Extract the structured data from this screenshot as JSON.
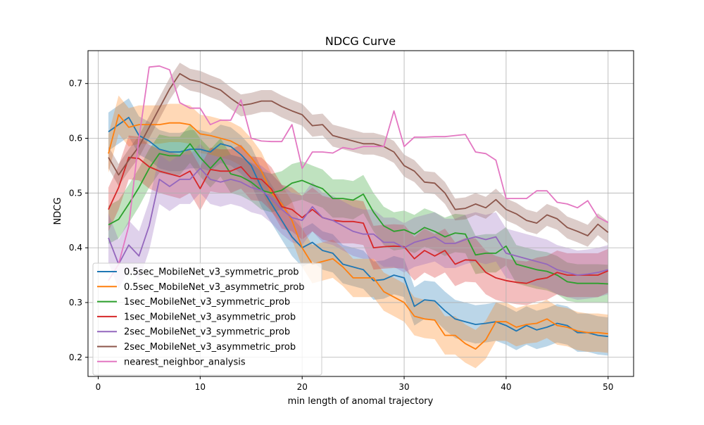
{
  "chart_data": {
    "type": "line",
    "title": "NDCG Curve",
    "xlabel": "min length of anomal trajectory",
    "ylabel": "NDCG",
    "xlim": [
      -1,
      52.5
    ],
    "ylim": [
      0.165,
      0.76
    ],
    "x_ticks": [
      0,
      10,
      20,
      30,
      40,
      50
    ],
    "y_ticks": [
      0.2,
      0.3,
      0.4,
      0.5,
      0.6,
      0.7
    ],
    "grid": true,
    "legend_position": "lower-left",
    "x": [
      1,
      2,
      3,
      4,
      5,
      6,
      7,
      8,
      9,
      10,
      11,
      12,
      13,
      14,
      15,
      16,
      17,
      18,
      19,
      20,
      21,
      22,
      23,
      24,
      25,
      26,
      27,
      28,
      29,
      30,
      31,
      32,
      33,
      34,
      35,
      36,
      37,
      38,
      39,
      40,
      41,
      42,
      43,
      44,
      45,
      46,
      47,
      48,
      49,
      50
    ],
    "series": [
      {
        "name": "0.5sec_MobileNet_v3_symmetric_prob",
        "color": "#1f77b4",
        "band": 0.035,
        "values": [
          0.612,
          0.625,
          0.638,
          0.605,
          0.595,
          0.58,
          0.575,
          0.575,
          0.58,
          0.58,
          0.575,
          0.59,
          0.585,
          0.57,
          0.55,
          0.51,
          0.48,
          0.45,
          0.42,
          0.4,
          0.41,
          0.395,
          0.39,
          0.37,
          0.365,
          0.36,
          0.34,
          0.342,
          0.35,
          0.345,
          0.293,
          0.305,
          0.303,
          0.285,
          0.27,
          0.265,
          0.26,
          0.262,
          0.265,
          0.258,
          0.248,
          0.258,
          0.25,
          0.255,
          0.262,
          0.258,
          0.245,
          0.245,
          0.24,
          0.238
        ]
      },
      {
        "name": "0.5sec_MobileNet_v3_asymmetric_prob",
        "color": "#ff7f0e",
        "band": 0.035,
        "values": [
          0.572,
          0.643,
          0.62,
          0.625,
          0.625,
          0.625,
          0.628,
          0.628,
          0.625,
          0.608,
          0.605,
          0.6,
          0.595,
          0.585,
          0.565,
          0.54,
          0.5,
          0.48,
          0.45,
          0.4,
          0.37,
          0.375,
          0.38,
          0.365,
          0.345,
          0.345,
          0.345,
          0.32,
          0.31,
          0.3,
          0.275,
          0.27,
          0.268,
          0.24,
          0.24,
          0.225,
          0.215,
          0.232,
          0.265,
          0.265,
          0.255,
          0.26,
          0.262,
          0.27,
          0.258,
          0.255,
          0.248,
          0.245,
          0.245,
          0.243
        ]
      },
      {
        "name": "1sec_MobileNet_v3_symmetric_prob",
        "color": "#2ca02c",
        "band": 0.035,
        "values": [
          0.442,
          0.452,
          0.48,
          0.51,
          0.545,
          0.572,
          0.568,
          0.568,
          0.59,
          0.565,
          0.545,
          0.565,
          0.535,
          0.53,
          0.52,
          0.505,
          0.5,
          0.505,
          0.518,
          0.523,
          0.515,
          0.508,
          0.49,
          0.49,
          0.487,
          0.498,
          0.465,
          0.44,
          0.43,
          0.433,
          0.425,
          0.437,
          0.43,
          0.42,
          0.427,
          0.425,
          0.387,
          0.39,
          0.39,
          0.403,
          0.37,
          0.365,
          0.36,
          0.357,
          0.35,
          0.338,
          0.335,
          0.335,
          0.335,
          0.334
        ]
      },
      {
        "name": "1sec_MobileNet_v3_asymmetric_prob",
        "color": "#d62728",
        "band": 0.04,
        "values": [
          0.47,
          0.51,
          0.565,
          0.563,
          0.548,
          0.54,
          0.535,
          0.53,
          0.54,
          0.508,
          0.543,
          0.54,
          0.54,
          0.548,
          0.527,
          0.525,
          0.507,
          0.475,
          0.47,
          0.455,
          0.47,
          0.455,
          0.45,
          0.448,
          0.448,
          0.445,
          0.4,
          0.402,
          0.403,
          0.402,
          0.38,
          0.395,
          0.385,
          0.395,
          0.37,
          0.378,
          0.377,
          0.355,
          0.345,
          0.34,
          0.337,
          0.335,
          0.342,
          0.345,
          0.355,
          0.35,
          0.35,
          0.35,
          0.35,
          0.358
        ]
      },
      {
        "name": "2sec_MobileNet_v3_symmetric_prob",
        "color": "#9467bd",
        "band": 0.045,
        "values": [
          0.418,
          0.37,
          0.405,
          0.385,
          0.44,
          0.525,
          0.512,
          0.525,
          0.525,
          0.545,
          0.525,
          0.52,
          0.525,
          0.52,
          0.51,
          0.505,
          0.49,
          0.47,
          0.455,
          0.45,
          0.475,
          0.455,
          0.45,
          0.44,
          0.43,
          0.425,
          0.425,
          0.41,
          0.41,
          0.4,
          0.41,
          0.415,
          0.42,
          0.408,
          0.408,
          0.415,
          0.42,
          0.415,
          0.42,
          0.39,
          0.385,
          0.38,
          0.375,
          0.37,
          0.36,
          0.355,
          0.35,
          0.352,
          0.355,
          0.36
        ]
      },
      {
        "name": "2sec_MobileNet_v3_asymmetric_prob",
        "color": "#8c564b",
        "band": 0.02,
        "values": [
          0.565,
          0.533,
          0.56,
          0.585,
          0.62,
          0.655,
          0.69,
          0.718,
          0.707,
          0.703,
          0.695,
          0.688,
          0.673,
          0.66,
          0.663,
          0.668,
          0.668,
          0.658,
          0.65,
          0.643,
          0.623,
          0.625,
          0.605,
          0.6,
          0.595,
          0.59,
          0.59,
          0.585,
          0.575,
          0.55,
          0.54,
          0.52,
          0.518,
          0.5,
          0.47,
          0.472,
          0.48,
          0.473,
          0.488,
          0.47,
          0.462,
          0.45,
          0.445,
          0.46,
          0.453,
          0.437,
          0.43,
          0.422,
          0.443,
          0.428
        ]
      },
      {
        "name": "nearest_neighbor_analysis",
        "color": "#e377c2",
        "band": 0,
        "values": [
          0.34,
          0.37,
          0.44,
          0.6,
          0.73,
          0.732,
          0.725,
          0.665,
          0.655,
          0.655,
          0.625,
          0.633,
          0.633,
          0.67,
          0.6,
          0.595,
          0.594,
          0.594,
          0.625,
          0.545,
          0.575,
          0.575,
          0.573,
          0.583,
          0.58,
          0.585,
          0.585,
          0.585,
          0.65,
          0.585,
          0.602,
          0.602,
          0.603,
          0.603,
          0.605,
          0.607,
          0.575,
          0.572,
          0.56,
          0.49,
          0.49,
          0.49,
          0.504,
          0.504,
          0.483,
          0.48,
          0.473,
          0.486,
          0.456,
          0.446
        ]
      }
    ]
  }
}
